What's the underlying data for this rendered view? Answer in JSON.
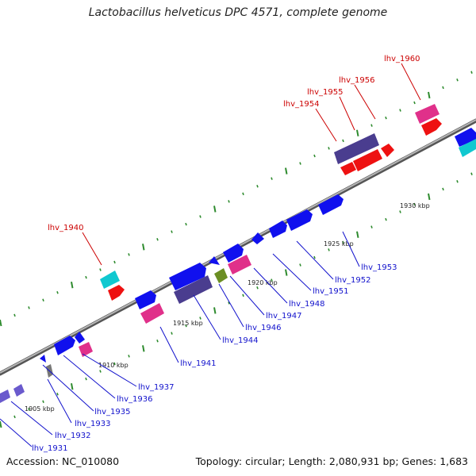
{
  "title": "Lactobacillus helveticus DPC 4571, complete genome",
  "footer": {
    "accession": "Accession: NC_010080",
    "stats": "Topology: circular; Length: 2,080,931 bp; Genes: 1,683"
  },
  "colors": {
    "backbone": "#8a8a8a",
    "tick": "#2e8b2e",
    "gene_blue": "#1010ee",
    "gene_purple": "#4a3d8f",
    "gene_magenta": "#e0308a",
    "gene_red": "#ee1111",
    "gene_cyan": "#10c8d0",
    "gene_olive": "#6b8e23",
    "gene_lavender": "#6a5acd",
    "gene_gray": "#777777",
    "label_blue": "#1111cc",
    "label_red": "#cc0000"
  },
  "scale_labels": [
    "1905 kbp",
    "1910 kbp",
    "1915 kbp",
    "1920 kbp",
    "1925 kbp",
    "1930 kbp"
  ],
  "gene_labels_blue": [
    "lhv_1931",
    "lhv_1932",
    "lhv_1933",
    "lhv_1935",
    "lhv_1936",
    "lhv_1937",
    "lhv_1941",
    "lhv_1944",
    "lhv_1946",
    "lhv_1947",
    "lhv_1948",
    "lhv_1951",
    "lhv_1952",
    "lhv_1953"
  ],
  "gene_labels_red": [
    "lhv_1940",
    "lhv_1954",
    "lhv_1955",
    "lhv_1956",
    "lhv_1960"
  ]
}
